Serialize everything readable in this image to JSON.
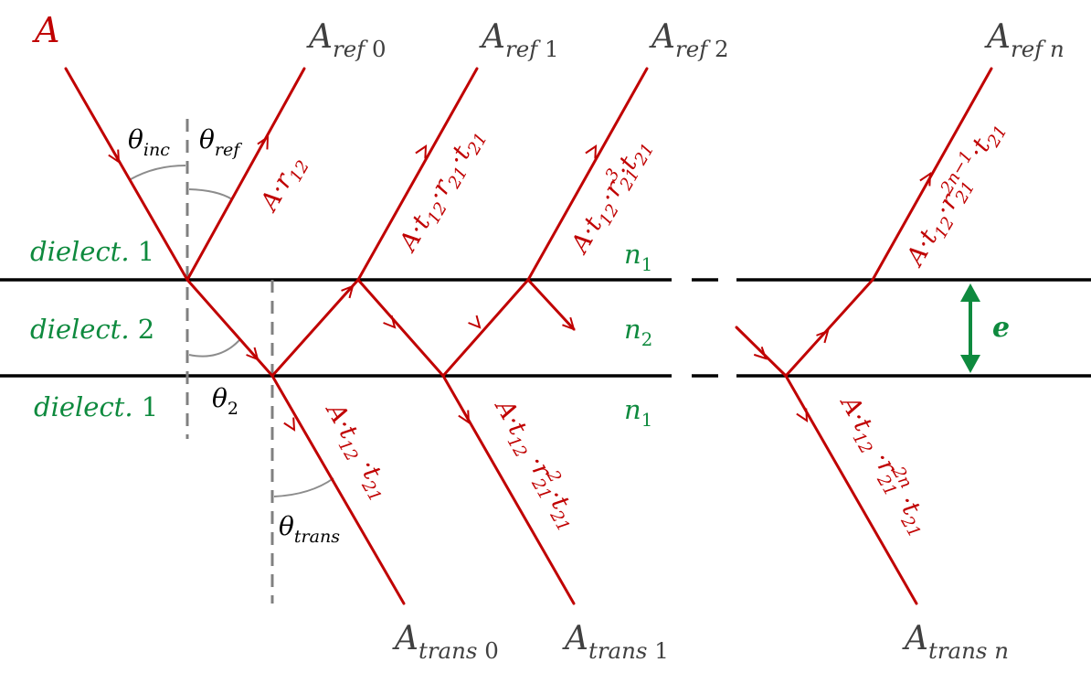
{
  "colors": {
    "ray": "#c00000",
    "interface": "#000000",
    "normal": "#808080",
    "arc": "#8c8c8c",
    "medium": "#0e8a3e",
    "output_label": "#404040",
    "angle_label": "#000000"
  },
  "incident": {
    "label": [
      {
        "t": "A"
      }
    ]
  },
  "reflected": [
    {
      "label": [
        {
          "t": "A"
        },
        {
          "t": "ref",
          "sub": true
        },
        {
          "t": " 0",
          "sub": true,
          "upright": true
        }
      ],
      "amplitude": [
        {
          "t": "A·r"
        },
        {
          "t": "12",
          "sub": true
        }
      ]
    },
    {
      "label": [
        {
          "t": "A"
        },
        {
          "t": "ref",
          "sub": true
        },
        {
          "t": " 1",
          "sub": true,
          "upright": true
        }
      ],
      "amplitude": [
        {
          "t": "A·t"
        },
        {
          "t": "12",
          "sub": true
        },
        {
          "t": "·r"
        },
        {
          "t": "21",
          "sub": true
        },
        {
          "t": "·t"
        },
        {
          "t": "21",
          "sub": true
        }
      ]
    },
    {
      "label": [
        {
          "t": "A"
        },
        {
          "t": "ref",
          "sub": true
        },
        {
          "t": " 2",
          "sub": true,
          "upright": true
        }
      ],
      "amplitude": [
        {
          "t": "A·t"
        },
        {
          "t": "12",
          "sub": true
        },
        {
          "t": "·r"
        },
        {
          "t": "21",
          "sub": true
        },
        {
          "t": "3",
          "sup": true
        },
        {
          "t": "·t"
        },
        {
          "t": "21",
          "sub": true
        }
      ]
    },
    {
      "label": [
        {
          "t": "A"
        },
        {
          "t": "ref n",
          "sub": true
        }
      ],
      "amplitude": [
        {
          "t": "A·t"
        },
        {
          "t": "12",
          "sub": true
        },
        {
          "t": "·r"
        },
        {
          "t": "21",
          "sub": true
        },
        {
          "t": "2n−1",
          "sup": true
        },
        {
          "t": "·t"
        },
        {
          "t": "21",
          "sub": true
        }
      ]
    }
  ],
  "transmitted": [
    {
      "label": [
        {
          "t": "A"
        },
        {
          "t": "trans",
          "sub": true
        },
        {
          "t": " 0",
          "sub": true,
          "upright": true
        }
      ],
      "amplitude": [
        {
          "t": "A·t"
        },
        {
          "t": "12",
          "sub": true
        },
        {
          "t": " ·t"
        },
        {
          "t": "21",
          "sub": true
        }
      ]
    },
    {
      "label": [
        {
          "t": "A"
        },
        {
          "t": "trans",
          "sub": true
        },
        {
          "t": " 1",
          "sub": true,
          "upright": true
        }
      ],
      "amplitude": [
        {
          "t": "A·t"
        },
        {
          "t": "12",
          "sub": true
        },
        {
          "t": " ·r"
        },
        {
          "t": "21",
          "sub": true
        },
        {
          "t": "2",
          "sup": true
        },
        {
          "t": " ·t"
        },
        {
          "t": "21",
          "sub": true
        }
      ]
    },
    {
      "label": [
        {
          "t": "A"
        },
        {
          "t": "trans n",
          "sub": true
        }
      ],
      "amplitude": [
        {
          "t": "A·t"
        },
        {
          "t": "12",
          "sub": true
        },
        {
          "t": " ·r"
        },
        {
          "t": "21",
          "sub": true
        },
        {
          "t": "2n",
          "sup": true
        },
        {
          "t": " ·t"
        },
        {
          "t": "21",
          "sub": true
        }
      ]
    }
  ],
  "angles": {
    "incident": [
      {
        "t": "θ"
      },
      {
        "t": "inc",
        "sub": true
      }
    ],
    "reflected": [
      {
        "t": "θ"
      },
      {
        "t": "ref",
        "sub": true
      }
    ],
    "refracted": [
      {
        "t": "θ"
      },
      {
        "t": "2",
        "sub": true,
        "upright": true
      }
    ],
    "transmitted": [
      {
        "t": "θ"
      },
      {
        "t": "trans",
        "sub": true
      }
    ]
  },
  "media": {
    "top": [
      {
        "t": "dielect. "
      },
      {
        "t": "1",
        "upright": true
      }
    ],
    "middle": [
      {
        "t": "dielect. "
      },
      {
        "t": "2",
        "upright": true
      }
    ],
    "bottom": [
      {
        "t": "dielect. "
      },
      {
        "t": "1",
        "upright": true
      }
    ]
  },
  "indices": {
    "top": [
      {
        "t": "n"
      },
      {
        "t": "1",
        "sub": true,
        "upright": true
      }
    ],
    "middle": [
      {
        "t": "n"
      },
      {
        "t": "2",
        "sub": true,
        "upright": true
      }
    ],
    "bottom": [
      {
        "t": "n"
      },
      {
        "t": "1",
        "sub": true,
        "upright": true
      }
    ]
  },
  "thickness": [
    {
      "t": "e"
    }
  ]
}
